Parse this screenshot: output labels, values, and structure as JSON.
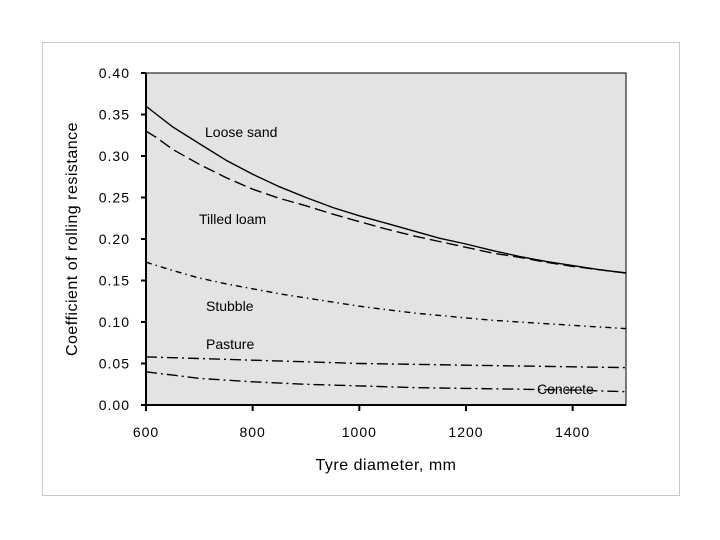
{
  "chart_data": {
    "type": "line",
    "title": "",
    "xlabel": "Tyre diameter, mm",
    "ylabel": "Coefficient of rolling resistance",
    "xlim": [
      600,
      1500
    ],
    "ylim": [
      0,
      0.4
    ],
    "x_ticks": [
      600,
      800,
      1000,
      1200,
      1400
    ],
    "x_tick_labels": [
      "600",
      "800",
      "1000",
      "1200",
      "1400"
    ],
    "y_ticks": [
      0,
      0.05,
      0.1,
      0.15,
      0.2,
      0.25,
      0.3,
      0.35,
      0.4
    ],
    "y_tick_labels": [
      "0.00",
      "0.05",
      "0.10",
      "0.15",
      "0.20",
      "0.25",
      "0.30",
      "0.35",
      "0.40"
    ],
    "grid": false,
    "plot_background": "#e3e3e3",
    "series": [
      {
        "name": "Loose sand",
        "dash": "solid",
        "x": [
          600,
          620,
          650,
          700,
          750,
          800,
          850,
          900,
          950,
          1000,
          1050,
          1100,
          1150,
          1200,
          1250,
          1300,
          1350,
          1400,
          1450,
          1500
        ],
        "y": [
          0.36,
          0.35,
          0.335,
          0.315,
          0.295,
          0.278,
          0.263,
          0.25,
          0.238,
          0.228,
          0.219,
          0.21,
          0.201,
          0.194,
          0.186,
          0.179,
          0.173,
          0.168,
          0.163,
          0.159
        ]
      },
      {
        "name": "Tilled loam",
        "dash": "long-dash",
        "x": [
          600,
          620,
          650,
          700,
          750,
          800,
          850,
          900,
          950,
          1000,
          1050,
          1100,
          1150,
          1200,
          1250,
          1300,
          1350,
          1400,
          1450,
          1500
        ],
        "y": [
          0.33,
          0.322,
          0.308,
          0.29,
          0.274,
          0.26,
          0.249,
          0.24,
          0.23,
          0.221,
          0.212,
          0.204,
          0.197,
          0.19,
          0.183,
          0.178,
          0.172,
          0.167,
          0.163,
          0.159
        ]
      },
      {
        "name": "Stubble",
        "dash": "dash-dot",
        "x": [
          600,
          650,
          700,
          750,
          800,
          850,
          900,
          950,
          1000,
          1050,
          1100,
          1150,
          1200,
          1250,
          1300,
          1350,
          1400,
          1450,
          1500
        ],
        "y": [
          0.172,
          0.162,
          0.153,
          0.146,
          0.14,
          0.134,
          0.129,
          0.124,
          0.119,
          0.115,
          0.111,
          0.108,
          0.105,
          0.102,
          0.1,
          0.098,
          0.096,
          0.094,
          0.092
        ]
      },
      {
        "name": "Pasture",
        "dash": "dash-dot-long",
        "x": [
          600,
          700,
          800,
          900,
          1000,
          1100,
          1200,
          1300,
          1400,
          1500
        ],
        "y": [
          0.058,
          0.056,
          0.054,
          0.052,
          0.05,
          0.049,
          0.048,
          0.047,
          0.046,
          0.045
        ]
      },
      {
        "name": "Concrete",
        "dash": "dash-dot-long",
        "x": [
          600,
          650,
          700,
          750,
          800,
          900,
          1000,
          1100,
          1200,
          1300,
          1400,
          1500
        ],
        "y": [
          0.04,
          0.036,
          0.032,
          0.03,
          0.028,
          0.025,
          0.023,
          0.021,
          0.02,
          0.019,
          0.018,
          0.016
        ]
      }
    ],
    "annotations": [
      {
        "text": "Loose sand",
        "series": "Loose sand"
      },
      {
        "text": "Tilled loam",
        "series": "Tilled loam"
      },
      {
        "text": "Stubble",
        "series": "Stubble"
      },
      {
        "text": "Pasture",
        "series": "Pasture"
      },
      {
        "text": "Concrete",
        "series": "Concrete"
      }
    ]
  }
}
